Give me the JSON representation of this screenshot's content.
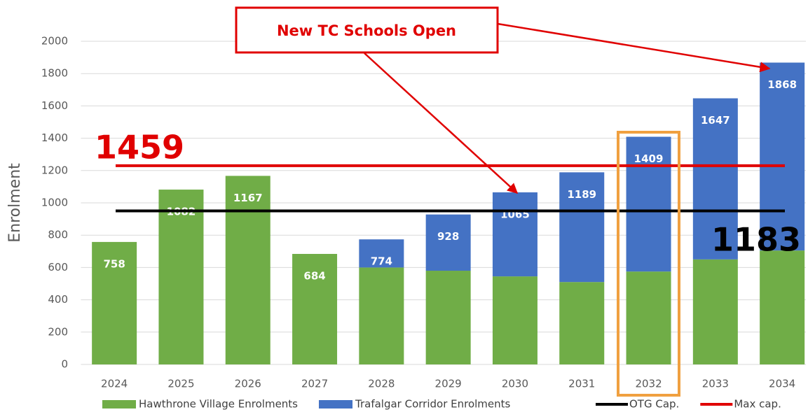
{
  "chart_data": {
    "type": "stacked_bar",
    "y_label": "Enrolment",
    "categories": [
      "2024",
      "2025",
      "2026",
      "2027",
      "2028",
      "2029",
      "2030",
      "2031",
      "2032",
      "2033",
      "2034"
    ],
    "series": [
      {
        "name": "Hawthrone Village Enrolments",
        "color": "#70ad47",
        "values": [
          758,
          1082,
          1167,
          684,
          600,
          580,
          545,
          510,
          575,
          650,
          705
        ]
      },
      {
        "name": "Trafalgar Corridor Enrolments",
        "color": "#4472c4",
        "values": [
          null,
          null,
          null,
          null,
          174,
          348,
          520,
          679,
          834,
          997,
          1163
        ]
      }
    ],
    "totals": [
      758,
      1082,
      1167,
      684,
      774,
      928,
      1065,
      1189,
      1409,
      1647,
      1868
    ],
    "lines": [
      {
        "name": "OTG Cap.",
        "color": "#000000",
        "value": 950
      },
      {
        "name": "Max cap.",
        "color": "#e00000",
        "value": 1230
      }
    ],
    "annotations": [
      "1459",
      "1183"
    ],
    "callout": "New TC Schools Open",
    "ylim": [
      0,
      2000
    ],
    "yticks": [
      0,
      200,
      400,
      600,
      800,
      1000,
      1200,
      1400,
      1600,
      1800,
      2000
    ],
    "grid": true
  }
}
